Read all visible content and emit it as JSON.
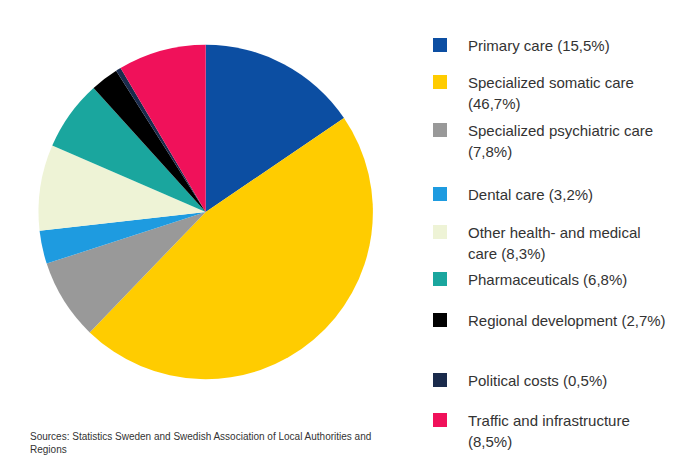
{
  "chart_data": {
    "type": "pie",
    "categories": [
      "Primary care (15,5%)",
      "Specialized somatic care (46,7%)",
      "Specialized psychiatric care (7,8%)",
      "Dental care (3,2%)",
      "Other health- and medical care (8,3%)",
      "Pharmaceuticals (6,8%)",
      "Regional development (2,7%)",
      "Political costs (0,5%)",
      "Traffic and infrastructure (8,5%)"
    ],
    "values": [
      15.5,
      46.7,
      7.8,
      3.2,
      8.3,
      6.8,
      2.7,
      0.5,
      8.5
    ],
    "colors": [
      "#0c4ea2",
      "#ffcc00",
      "#999999",
      "#1e9be0",
      "#eef3d6",
      "#1aa69e",
      "#000000",
      "#1a2b4c",
      "#f0115a"
    ],
    "source": "Sources: Statistics Sweden and Swedish Association of Local Authorities and Regions"
  }
}
